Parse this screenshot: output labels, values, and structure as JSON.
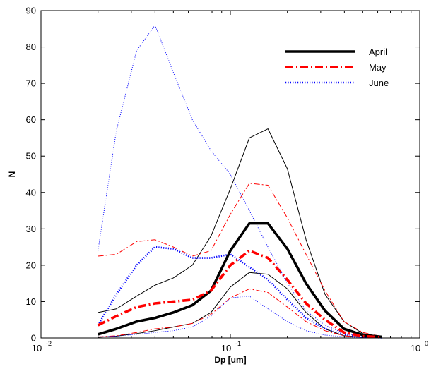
{
  "chart_data": {
    "type": "line",
    "xlabel": "Dp [um]",
    "ylabel": "N",
    "xscale": "log",
    "xlim": [
      0.01,
      1
    ],
    "ylim": [
      0,
      90
    ],
    "x_ticks": [
      {
        "base": "10",
        "exp": "-2",
        "value": 0.01
      },
      {
        "base": "10",
        "exp": "-1",
        "value": 0.1
      },
      {
        "base": "10",
        "exp": "0",
        "value": 1
      }
    ],
    "y_ticks": [
      0,
      10,
      20,
      30,
      40,
      50,
      60,
      70,
      80,
      90
    ],
    "grid": false,
    "legend_position": "top-right",
    "legend": [
      {
        "label": "April",
        "color": "#000000",
        "style": "solid"
      },
      {
        "label": "May",
        "color": "#ff0000",
        "style": "dash-dot"
      },
      {
        "label": "June",
        "color": "#0000ff",
        "style": "dotted"
      }
    ],
    "x": [
      0.02,
      0.025,
      0.032,
      0.04,
      0.05,
      0.063,
      0.079,
      0.1,
      0.126,
      0.158,
      0.2,
      0.251,
      0.316,
      0.398,
      0.501,
      0.631
    ],
    "series": [
      {
        "name": "April",
        "role": "median",
        "color": "#000000",
        "style": "solid",
        "width": 3.6,
        "values": [
          1.0,
          2.5,
          4.5,
          5.5,
          7.0,
          9.0,
          13.0,
          24.0,
          31.5,
          31.5,
          24.5,
          15.0,
          7.5,
          2.5,
          0.8,
          0.3
        ]
      },
      {
        "name": "April",
        "role": "upper",
        "color": "#000000",
        "style": "solid",
        "width": 1.0,
        "values": [
          7.0,
          8.0,
          11.5,
          14.5,
          16.5,
          20.0,
          28.0,
          41.0,
          55.0,
          57.5,
          46.5,
          27.0,
          12.0,
          4.5,
          1.2,
          0.4
        ]
      },
      {
        "name": "April",
        "role": "lower",
        "color": "#000000",
        "style": "solid",
        "width": 1.0,
        "values": [
          0.2,
          0.5,
          1.2,
          2.0,
          3.0,
          4.0,
          7.0,
          14.0,
          18.0,
          17.5,
          13.5,
          7.0,
          2.5,
          0.6,
          0.2,
          0.1
        ]
      },
      {
        "name": "May",
        "role": "median",
        "color": "#ff0000",
        "style": "dash-dot",
        "width": 3.6,
        "values": [
          3.5,
          6.0,
          8.5,
          9.5,
          10.0,
          10.5,
          13.0,
          20.0,
          24.0,
          22.0,
          16.0,
          9.5,
          5.0,
          1.5,
          0.5,
          0.2
        ]
      },
      {
        "name": "May",
        "role": "upper",
        "color": "#ff0000",
        "style": "dash-dot",
        "width": 1.0,
        "values": [
          22.5,
          23.0,
          26.5,
          27.0,
          25.0,
          22.5,
          24.0,
          34.0,
          42.5,
          42.0,
          33.0,
          23.0,
          13.0,
          4.5,
          1.5,
          0.4
        ]
      },
      {
        "name": "May",
        "role": "lower",
        "color": "#ff0000",
        "style": "dash-dot",
        "width": 1.0,
        "values": [
          0.3,
          0.6,
          1.5,
          2.5,
          3.0,
          4.0,
          6.5,
          11.0,
          13.5,
          12.5,
          8.5,
          4.5,
          2.0,
          0.6,
          0.2,
          0.1
        ]
      },
      {
        "name": "June",
        "role": "median",
        "color": "#0000ff",
        "style": "dotted",
        "width": 2.6,
        "values": [
          3.5,
          12.0,
          20.0,
          25.0,
          24.5,
          22.0,
          22.0,
          23.0,
          19.5,
          16.0,
          10.5,
          5.5,
          2.5,
          1.0,
          0.3,
          0.1
        ]
      },
      {
        "name": "June",
        "role": "upper",
        "color": "#0000ff",
        "style": "dotted",
        "width": 1.0,
        "values": [
          24.0,
          57.0,
          79.0,
          86.0,
          73.0,
          60.0,
          51.5,
          45.0,
          35.0,
          25.0,
          15.0,
          7.5,
          3.5,
          1.3,
          0.4,
          0.1
        ]
      },
      {
        "name": "June",
        "role": "lower",
        "color": "#0000ff",
        "style": "dotted",
        "width": 1.0,
        "values": [
          0.3,
          0.5,
          1.0,
          1.5,
          2.0,
          3.0,
          6.0,
          11.0,
          11.5,
          8.0,
          4.5,
          2.0,
          0.8,
          0.3,
          0.1,
          0.05
        ]
      }
    ]
  }
}
